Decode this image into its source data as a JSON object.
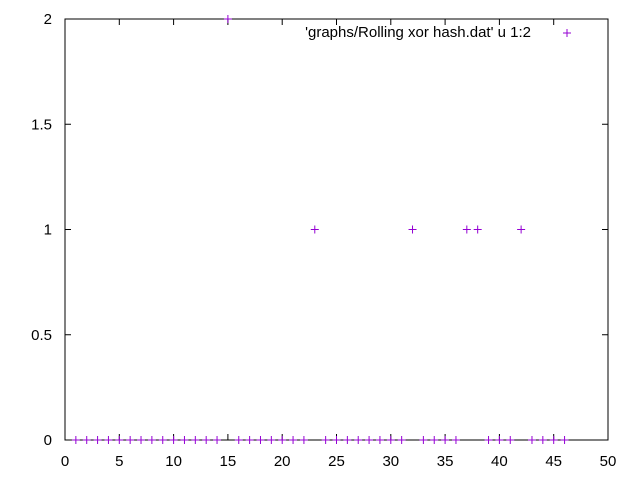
{
  "chart_data": {
    "type": "scatter",
    "title": "",
    "xlabel": "",
    "ylabel": "",
    "xlim": [
      0,
      50
    ],
    "ylim": [
      0,
      2
    ],
    "x_ticks": [
      "0",
      "5",
      "10",
      "15",
      "20",
      "25",
      "30",
      "35",
      "40",
      "45",
      "50"
    ],
    "y_ticks": [
      "0",
      "0.5",
      "1",
      "1.5",
      "2"
    ],
    "grid": false,
    "legend_position": "top-right",
    "marker": "plus",
    "series": [
      {
        "name": "'graphs/Rolling xor hash.dat' u 1:2",
        "color": "#9400d3",
        "x": [
          1,
          2,
          3,
          4,
          5,
          6,
          7,
          8,
          9,
          10,
          11,
          12,
          13,
          14,
          15,
          16,
          17,
          18,
          19,
          20,
          21,
          22,
          23,
          24,
          25,
          26,
          27,
          28,
          29,
          30,
          31,
          32,
          33,
          34,
          35,
          36,
          37,
          38,
          39,
          40,
          41,
          42,
          43,
          44,
          45,
          46
        ],
        "y": [
          0,
          0,
          0,
          0,
          0,
          0,
          0,
          0,
          0,
          0,
          0,
          0,
          0,
          0,
          2,
          0,
          0,
          0,
          0,
          0,
          0,
          0,
          1,
          0,
          0,
          0,
          0,
          0,
          0,
          0,
          0,
          1,
          0,
          0,
          0,
          0,
          1,
          1,
          0,
          0,
          0,
          1,
          0,
          0,
          0,
          0
        ]
      }
    ]
  }
}
